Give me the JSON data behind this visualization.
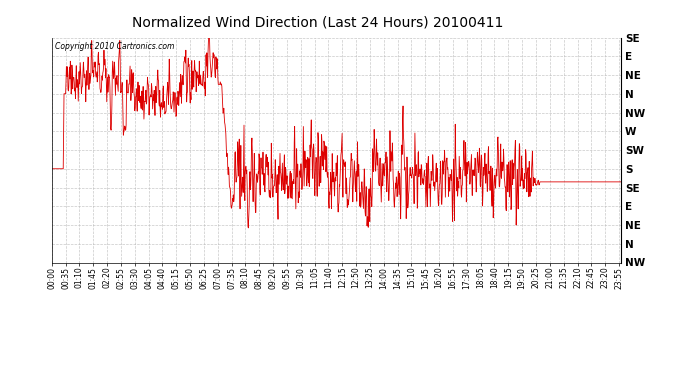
{
  "title": "Normalized Wind Direction (Last 24 Hours) 20100411",
  "copyright_text": "Copyright 2010 Cartronics.com",
  "line_color": "#dd0000",
  "background_color": "#ffffff",
  "plot_bg_color": "#ffffff",
  "grid_color": "#bbbbbb",
  "y_labels_top_to_bottom": [
    "SE",
    "E",
    "NE",
    "N",
    "NW",
    "W",
    "SW",
    "S",
    "SE",
    "E",
    "NE",
    "N",
    "NW"
  ],
  "ylim": [
    0,
    12
  ],
  "x_display_ticks": [
    "00:00",
    "00:35",
    "01:10",
    "01:45",
    "02:20",
    "02:55",
    "03:30",
    "04:05",
    "04:40",
    "05:15",
    "05:50",
    "06:25",
    "07:00",
    "07:35",
    "08:10",
    "08:45",
    "09:20",
    "09:55",
    "10:30",
    "11:05",
    "11:40",
    "12:15",
    "12:50",
    "13:25",
    "14:00",
    "14:35",
    "15:10",
    "15:45",
    "16:20",
    "16:55",
    "17:30",
    "18:05",
    "18:40",
    "19:15",
    "19:50",
    "20:25",
    "21:00",
    "21:35",
    "22:10",
    "22:45",
    "23:20",
    "23:55"
  ]
}
